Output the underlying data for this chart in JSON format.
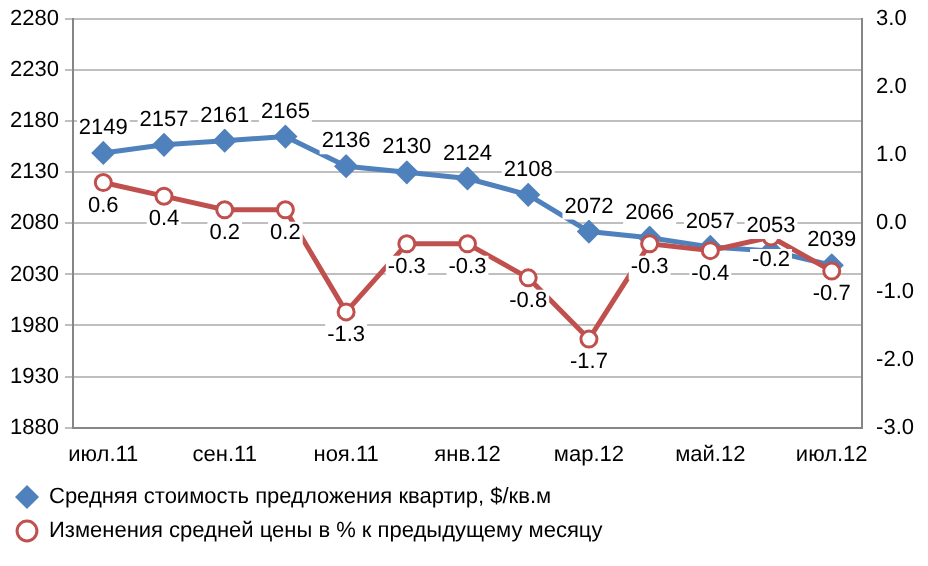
{
  "chart_data": {
    "type": "line",
    "categories": [
      "июл.11",
      null,
      "сен.11",
      null,
      "ноя.11",
      null,
      "янв.12",
      null,
      "мар.12",
      null,
      "май.12",
      null,
      "июл.12"
    ],
    "series": [
      {
        "name": "Средняя стоимость предложения квартир, $/кв.м",
        "color": "#4f81bd",
        "marker": "diamond",
        "values": [
          2149,
          2157,
          2161,
          2165,
          2136,
          2130,
          2124,
          2108,
          2072,
          2066,
          2057,
          2053,
          2039
        ]
      },
      {
        "name": "Изменения средней цены в % к предыдущему месяцу",
        "color": "#c0504d",
        "marker": "circle",
        "axis": "y2",
        "values": [
          0.6,
          0.4,
          0.2,
          0.2,
          -1.3,
          -0.3,
          -0.3,
          -0.8,
          -1.7,
          -0.3,
          -0.4,
          -0.2,
          -0.7
        ]
      }
    ],
    "ylim": [
      1880,
      2280
    ],
    "yticks": [
      1880,
      1930,
      1980,
      2030,
      2080,
      2130,
      2180,
      2230,
      2280
    ],
    "y2lim": [
      -3,
      3
    ],
    "y2ticks": [
      {
        "value": -3,
        "label": "-3.0"
      },
      {
        "value": -2,
        "label": "-2.0"
      },
      {
        "value": -1,
        "label": "-1.0"
      },
      {
        "value": 0,
        "label": "0.0"
      },
      {
        "value": 1,
        "label": "1.0"
      },
      {
        "value": 2,
        "label": "2.0"
      },
      {
        "value": 3,
        "label": "3.0"
      }
    ],
    "grid": "y",
    "legend": "bottom",
    "data_labels": true,
    "line_style": "solid"
  }
}
